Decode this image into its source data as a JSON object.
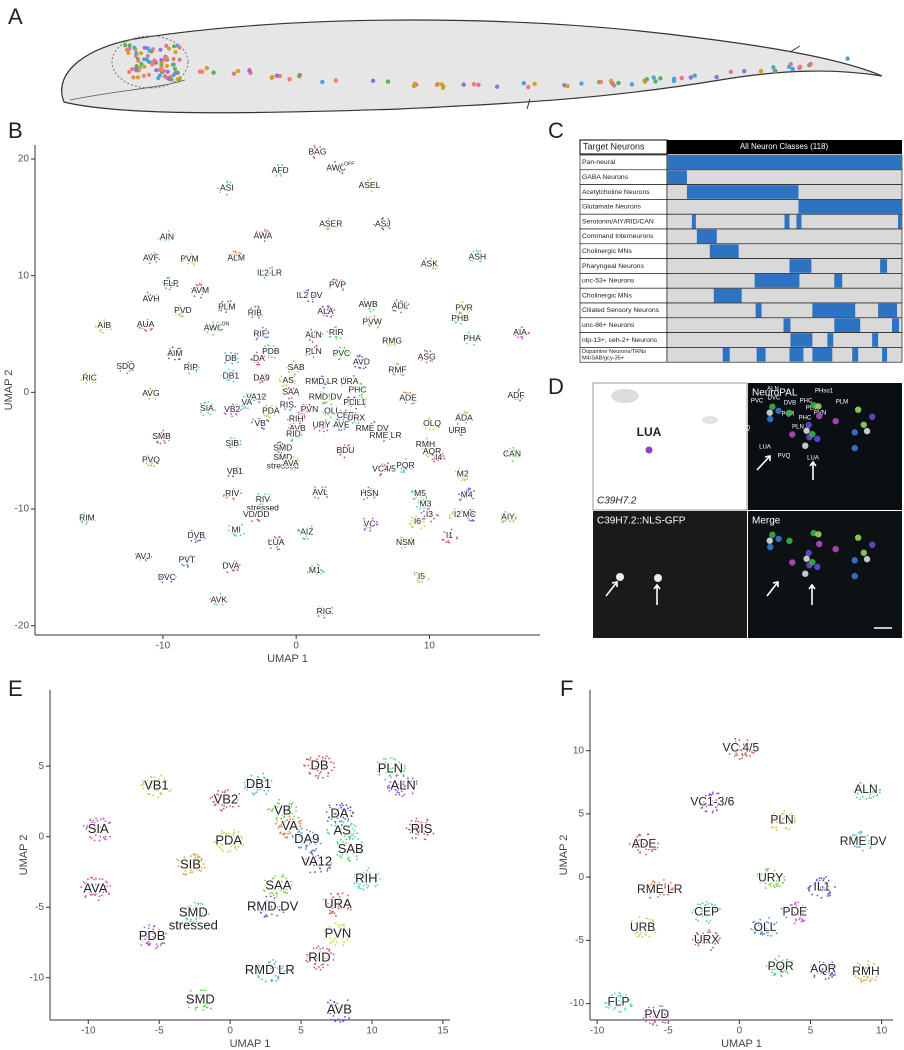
{
  "panel_labels": [
    "A",
    "B",
    "C",
    "D",
    "E",
    "F"
  ],
  "umap": [
    {
      "xlabel": "UMAP 1",
      "ylabel": "UMAP 2",
      "xlim": [
        -19.6,
        18.3
      ],
      "ylim": [
        -20.8,
        21.2
      ],
      "xticks": [
        -10,
        0,
        10
      ],
      "yticks": [
        -20,
        -10,
        0,
        10,
        20
      ],
      "clusters": [
        [
          "BAG",
          1.6,
          20.6
        ],
        [
          "AFD",
          -1.2,
          19.0
        ],
        [
          "AWC",
          3.0,
          19.2,
          "OFF"
        ],
        [
          "ASEL",
          5.5,
          17.7
        ],
        [
          "ASI",
          -5.2,
          17.5
        ],
        [
          "AWA",
          -2.5,
          13.4
        ],
        [
          "ASER",
          2.6,
          14.4
        ],
        [
          "ASJ",
          6.5,
          14.4
        ],
        [
          "ALM",
          -4.5,
          11.5
        ],
        [
          "AIN",
          -9.7,
          13.3
        ],
        [
          "AVF",
          -10.9,
          11.5
        ],
        [
          "PVM",
          -8.0,
          11.4
        ],
        [
          "FLP",
          -9.4,
          9.3
        ],
        [
          "AVM",
          -7.2,
          8.7
        ],
        [
          "IL2 LR",
          -2.0,
          10.2
        ],
        [
          "IL2 DV",
          1.0,
          8.3
        ],
        [
          "ASK",
          10.0,
          11.0
        ],
        [
          "ASH",
          13.6,
          11.6
        ],
        [
          "AVH",
          -10.9,
          8.0
        ],
        [
          "PVD",
          -8.5,
          7.0
        ],
        [
          "PLM",
          -5.2,
          7.3
        ],
        [
          "PVP",
          3.1,
          9.2
        ],
        [
          "AWB",
          5.4,
          7.5
        ],
        [
          "ADL",
          7.8,
          7.4
        ],
        [
          "PVR",
          12.6,
          7.2
        ],
        [
          "PHB",
          12.3,
          6.3
        ],
        [
          "AUA",
          -11.3,
          5.8
        ],
        [
          "AWC",
          -6.2,
          5.5,
          "ON"
        ],
        [
          "RIB",
          -3.1,
          6.8
        ],
        [
          "PVW",
          5.7,
          6.0
        ],
        [
          "PHA",
          13.2,
          4.6
        ],
        [
          "AIA",
          16.8,
          5.1
        ],
        [
          "AIB",
          -14.4,
          5.7
        ],
        [
          "RIF",
          -2.7,
          5.0
        ],
        [
          "ALN",
          1.3,
          4.9
        ],
        [
          "RIR",
          3.0,
          5.1
        ],
        [
          "ALA",
          2.2,
          6.9
        ],
        [
          "RMG",
          7.2,
          4.4
        ],
        [
          "PDB",
          -1.9,
          3.5
        ],
        [
          "PLN",
          1.3,
          3.5
        ],
        [
          "SAB",
          0,
          2.1
        ],
        [
          "AIM",
          -9.1,
          3.3
        ],
        [
          "SDQ",
          -12.8,
          2.2
        ],
        [
          "RIP",
          -7.9,
          2.1
        ],
        [
          "ASG",
          9.8,
          3.0
        ],
        [
          "RIC",
          -15.5,
          1.2
        ],
        [
          "DB",
          -4.9,
          2.9
        ],
        [
          "DA",
          -2.8,
          2.9
        ],
        [
          "PVC",
          3.4,
          3.3
        ],
        [
          "AVD",
          4.9,
          2.6
        ],
        [
          "RMF",
          7.6,
          1.9
        ],
        [
          "DB1",
          -4.9,
          1.4
        ],
        [
          "DA9",
          -2.6,
          1.2
        ],
        [
          "AS",
          -0.6,
          1.0
        ],
        [
          "RMD LR",
          1.9,
          0.9
        ],
        [
          "URA",
          4.0,
          0.9
        ],
        [
          "PHC",
          4.6,
          0.2
        ],
        [
          "ADF",
          16.5,
          -0.3
        ],
        [
          "AVG",
          -10.9,
          -0.1
        ],
        [
          "VA12",
          -3.0,
          -0.4
        ],
        [
          "SAA",
          -0.4,
          0
        ],
        [
          "RMD DV",
          2.2,
          -0.4
        ],
        [
          "PDE",
          4.2,
          -0.9
        ],
        [
          "ADE",
          8.4,
          -0.5
        ],
        [
          "SIA",
          -6.7,
          -1.4
        ],
        [
          "VB2",
          -4.8,
          -1.5
        ],
        [
          "PDA",
          -1.9,
          -1.6
        ],
        [
          "RIS",
          -0.7,
          -1.1
        ],
        [
          "PVN",
          1.0,
          -1.5
        ],
        [
          "OLL",
          2.7,
          -1.6
        ],
        [
          "CEP",
          3.7,
          -2.0
        ],
        [
          "ADA",
          12.6,
          -2.2
        ],
        [
          "VA",
          -3.7,
          -0.9
        ],
        [
          "RIH",
          0,
          -2.3
        ],
        [
          "IL1",
          4.8,
          -0.9
        ],
        [
          "VB",
          -2.7,
          -2.7
        ],
        [
          "AVB",
          0.1,
          -3.1
        ],
        [
          "RID",
          -0.2,
          -3.6
        ],
        [
          "URY",
          1.9,
          -2.8
        ],
        [
          "OLQ",
          10.2,
          -2.7
        ],
        [
          "URB",
          12.1,
          -3.3
        ],
        [
          "SMB",
          -10.1,
          -3.8
        ],
        [
          "SIB",
          -4.8,
          -4.4
        ],
        [
          "SMD",
          -1.0,
          -4.8
        ],
        [
          "RME LR",
          6.7,
          -3.7
        ],
        [
          "RMH",
          9.7,
          -4.5
        ],
        [
          [
            "SMD",
            "stressed"
          ],
          -1.0,
          -5.6
        ],
        [
          "AQR",
          10.2,
          -5.1
        ],
        [
          "AVE",
          3.4,
          -2.8
        ],
        [
          "BDU",
          3.7,
          -5.0
        ],
        [
          "URX",
          4.5,
          -2.2
        ],
        [
          "RME DV",
          5.7,
          -3.1
        ],
        [
          "AVA",
          -0.4,
          -6.1
        ],
        [
          "PQR",
          8.2,
          -6.3
        ],
        [
          "I4",
          10.7,
          -5.6
        ],
        [
          "CAN",
          16.2,
          -5.3
        ],
        [
          "VB1",
          -4.6,
          -6.8
        ],
        [
          "RIV",
          -4.8,
          -8.7
        ],
        [
          [
            "RIV",
            "stressed"
          ],
          -2.5,
          -9.2
        ],
        [
          "HSN",
          5.5,
          -8.7
        ],
        [
          "M2",
          12.5,
          -7.0
        ],
        [
          "AVL",
          1.8,
          -8.6
        ],
        [
          "VC4/5",
          6.6,
          -6.6
        ],
        [
          "M5",
          9.3,
          -8.7
        ],
        [
          "M4",
          12.8,
          -8.8
        ],
        [
          "PVQ",
          -10.9,
          -5.8
        ],
        [
          "M3",
          9.7,
          -9.6
        ],
        [
          "I3",
          10.0,
          -10.5
        ],
        [
          "I2",
          12.1,
          -10.5
        ],
        [
          "MC",
          13.0,
          -10.5
        ],
        [
          "VD/DD",
          -3.0,
          -10.5
        ],
        [
          "RIM",
          -15.7,
          -10.8
        ],
        [
          "VC",
          5.5,
          -11.3
        ],
        [
          "I6",
          9.1,
          -11.1
        ],
        [
          "AIZ",
          0.8,
          -12.0
        ],
        [
          "I1",
          11.5,
          -12.3
        ],
        [
          "AIY",
          15.9,
          -10.7
        ],
        [
          "DVB",
          -7.5,
          -12.3
        ],
        [
          "AVJ",
          -11.5,
          -14.1
        ],
        [
          "MI",
          -4.5,
          -11.8
        ],
        [
          "LUA",
          -1.5,
          -12.9
        ],
        [
          "NSM",
          8.2,
          -12.9
        ],
        [
          "PVT",
          -8.2,
          -14.4
        ],
        [
          "DVA",
          -4.9,
          -14.9
        ],
        [
          "M1",
          1.4,
          -15.3
        ],
        [
          "DVC",
          -9.7,
          -15.9
        ],
        [
          "I5",
          9.4,
          -15.8
        ],
        [
          "AVK",
          -5.8,
          -17.8
        ],
        [
          "RIG",
          2.1,
          -18.8
        ]
      ]
    },
    {
      "xlabel": "UMAP 1",
      "ylabel": "UMAP 2",
      "xlim": [
        -12.7,
        15.5
      ],
      "ylim": [
        -13,
        10.4
      ],
      "xticks": [
        -10,
        -5,
        0,
        5,
        10,
        15
      ],
      "yticks": [
        -10,
        -5,
        0,
        5
      ],
      "clusters": [
        [
          "DB",
          6.3,
          5.0
        ],
        [
          "PLN",
          11.3,
          4.8
        ],
        [
          "ALN",
          12.2,
          3.6
        ],
        [
          "VB1",
          -5.2,
          3.6
        ],
        [
          "DB1",
          2.0,
          3.7
        ],
        [
          "VB2",
          -0.3,
          2.6
        ],
        [
          "VB",
          3.7,
          1.8
        ],
        [
          "DA",
          7.7,
          1.6
        ],
        [
          "VA",
          4.2,
          0.7
        ],
        [
          "AS",
          7.9,
          0.4
        ],
        [
          "SIA",
          -9.3,
          0.5
        ],
        [
          "PDA",
          -0.1,
          -0.3
        ],
        [
          "DA9",
          5.4,
          -0.2
        ],
        [
          "RIS",
          13.5,
          0.5
        ],
        [
          "SAB",
          8.5,
          -0.9
        ],
        [
          "VA12",
          6.1,
          -1.8
        ],
        [
          "SIB",
          -2.8,
          -2.0
        ],
        [
          "RIH",
          9.6,
          -3.0
        ],
        [
          "AVA",
          -9.5,
          -3.7
        ],
        [
          "SAA",
          3.4,
          -3.5
        ],
        [
          "RMD DV",
          3.0,
          -5.0
        ],
        [
          "URA",
          7.6,
          -4.8
        ],
        [
          [
            "SMD",
            "stressed"
          ],
          -2.6,
          -5.4
        ],
        [
          "PDB",
          -5.5,
          -7.1
        ],
        [
          "PVN",
          7.6,
          -6.9
        ],
        [
          "RMD LR",
          2.8,
          -9.5
        ],
        [
          "RID",
          6.3,
          -8.6
        ],
        [
          "SMD",
          -2.1,
          -11.6
        ],
        [
          "AVB",
          7.7,
          -12.3
        ]
      ]
    },
    {
      "xlabel": "UMAP 1",
      "ylabel": "UMAP 2",
      "xlim": [
        -10.5,
        10.8
      ],
      "ylim": [
        -11.3,
        14.8
      ],
      "xticks": [
        -10,
        -5,
        0,
        5,
        10
      ],
      "yticks": [
        -10,
        -5,
        0,
        5,
        10
      ],
      "clusters": [
        [
          "VC 4/5",
          0.1,
          10.2
        ],
        [
          "ALN",
          8.9,
          6.9
        ],
        [
          "VC1-3/6",
          -1.9,
          5.9
        ],
        [
          "PLN",
          3.0,
          4.5
        ],
        [
          "RME DV",
          8.7,
          2.8
        ],
        [
          "ADE",
          -6.7,
          2.6
        ],
        [
          "URY",
          2.2,
          -0.1
        ],
        [
          "IL1",
          5.8,
          -0.8
        ],
        [
          "RME LR",
          -5.6,
          -1.0
        ],
        [
          "CEP",
          -2.3,
          -2.8
        ],
        [
          "PDE",
          3.9,
          -2.8
        ],
        [
          "URB",
          -6.8,
          -4.0
        ],
        [
          "OLL",
          1.8,
          -4.0
        ],
        [
          "URX",
          -2.3,
          -5.0
        ],
        [
          "PQR",
          2.9,
          -7.1
        ],
        [
          "AQR",
          5.9,
          -7.3
        ],
        [
          "RMH",
          8.9,
          -7.5
        ],
        [
          "FLP",
          -8.5,
          -9.9
        ],
        [
          "PVD",
          -5.8,
          -10.9
        ]
      ]
    }
  ],
  "heatmap": {
    "header": [
      "Target Neurons",
      "All Neuron Classes (118)"
    ],
    "xlim": [
      0,
      118
    ],
    "rows": [
      {
        "label": "Pan-neural",
        "segments": [
          [
            0,
            118
          ]
        ]
      },
      {
        "label": "GABA Neurons",
        "segments": [
          [
            0,
            10
          ]
        ]
      },
      {
        "label": "Acetylcholine Neurons",
        "segments": [
          [
            10,
            66
          ]
        ]
      },
      {
        "label": "Glutamate Neurons",
        "segments": [
          [
            66,
            118
          ]
        ]
      },
      {
        "label": "Serotonin/AIY/RID/CAN",
        "segments": [
          [
            12.5,
            14.5
          ],
          [
            59,
            61.5
          ],
          [
            65,
            67.5
          ],
          [
            116,
            118
          ]
        ]
      },
      {
        "label": "Command Interneurons",
        "segments": [
          [
            15,
            25
          ]
        ]
      },
      {
        "label": "Cholinergic MNs",
        "segments": [
          [
            21.5,
            36
          ]
        ]
      },
      {
        "label": "Pharyngeal Neurons",
        "segments": [
          [
            61.5,
            72.5
          ],
          [
            107,
            110.5
          ]
        ]
      },
      {
        "label": "unc-53+ Neurons",
        "segments": [
          [
            44,
            66.5
          ],
          [
            84,
            88
          ]
        ]
      },
      {
        "label": "Cholinergic MNs",
        "segments": [
          [
            23.5,
            37.5
          ]
        ]
      },
      {
        "label": "Ciliated Sensory Neurons",
        "segments": [
          [
            44.5,
            47.5
          ],
          [
            73,
            94.5
          ],
          [
            106,
            115.5
          ]
        ]
      },
      {
        "label": "unc-86+ Neurons",
        "segments": [
          [
            58.5,
            62
          ],
          [
            84,
            97
          ],
          [
            113,
            116.5
          ]
        ]
      },
      {
        "label": "nlp-13+, ceh-2+ Neurons",
        "segments": [
          [
            62,
            73
          ],
          [
            80.5,
            83.5
          ],
          [
            103,
            106
          ]
        ]
      },
      {
        "label": [
          "Dopamine Neurons/TRNs",
          "M4/SAB/gcy-35+"
        ],
        "segments": [
          [
            28,
            31.5
          ],
          [
            45,
            49.5
          ],
          [
            61.5,
            68.5
          ],
          [
            73,
            83
          ],
          [
            93,
            96
          ],
          [
            108,
            110.5
          ]
        ]
      }
    ]
  },
  "microscopy": {
    "cell": "LUA",
    "gene": "C39H7.2",
    "neuropal": "NeuroPAL",
    "gfp": "C39H7.2::NLS-GFP",
    "merge": "Merge",
    "neuropal_labels": [
      "PHso1",
      "ALN",
      "PVC",
      "DVC",
      "DVB",
      "PHC",
      "PLM",
      "PHA",
      "PQR",
      "PHB",
      "PVN",
      "PLM",
      "PVQ",
      "PLN",
      "PHC",
      "PVQ",
      "LUA",
      "LUA"
    ]
  }
}
